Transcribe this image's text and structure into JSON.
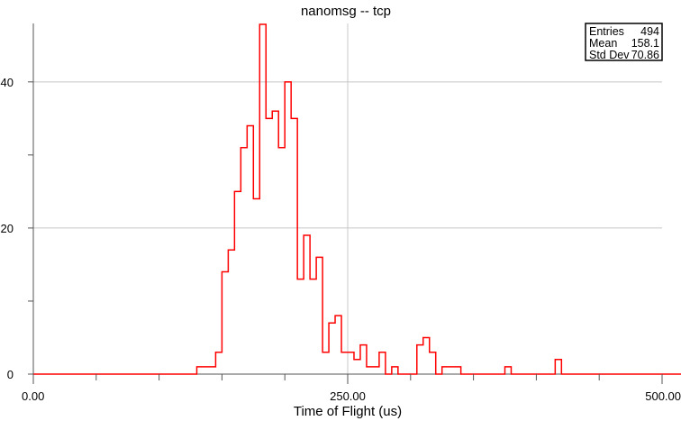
{
  "chart_data": {
    "type": "bar",
    "title": "nanomsg -- tcp",
    "xlabel": "Time of Flight (us)",
    "ylabel": "",
    "xlim": [
      0,
      500
    ],
    "ylim": [
      0,
      48
    ],
    "grid": true,
    "x_ticks": [
      {
        "value": 0,
        "label": "0.00"
      },
      {
        "value": 250,
        "label": "250.00"
      },
      {
        "value": 500,
        "label": "500.00"
      }
    ],
    "y_ticks": [
      {
        "value": 0,
        "label": "0"
      },
      {
        "value": 20,
        "label": "20"
      },
      {
        "value": 40,
        "label": "40"
      }
    ],
    "bin_width": 5,
    "bin_start": 0,
    "values": [
      0,
      0,
      0,
      0,
      0,
      0,
      0,
      0,
      0,
      0,
      0,
      0,
      0,
      0,
      0,
      0,
      0,
      0,
      0,
      0,
      0,
      0,
      0,
      0,
      0,
      0,
      1,
      1,
      1,
      3,
      14,
      17,
      25,
      31,
      34,
      24,
      48,
      35,
      36,
      31,
      40,
      35,
      13,
      19,
      13,
      16,
      3,
      7,
      8,
      3,
      3,
      2,
      4,
      1,
      1,
      3,
      0,
      1,
      0,
      0,
      0,
      4,
      5,
      3,
      0,
      1,
      1,
      1,
      0,
      0,
      0,
      0,
      0,
      0,
      0,
      1,
      0,
      0,
      0,
      0,
      0,
      0,
      0,
      2,
      0,
      0,
      0,
      0,
      0,
      0,
      0,
      0,
      0,
      0,
      0,
      0,
      0,
      0,
      0,
      0,
      0,
      0,
      0,
      0,
      0,
      0,
      0,
      0,
      0,
      0,
      0,
      0,
      0,
      0,
      0,
      0,
      0,
      0,
      0,
      0,
      0,
      0,
      0,
      0,
      0,
      0,
      0,
      0,
      0,
      0,
      0,
      0,
      0,
      0,
      0,
      0,
      0,
      0,
      0,
      0,
      0,
      0,
      0,
      0,
      0,
      0,
      0,
      0,
      0,
      0,
      0,
      0,
      0,
      0,
      0,
      0,
      0,
      0,
      0,
      0
    ],
    "series_color": "#ff0000",
    "stats": {
      "entries_label": "Entries",
      "entries_value": "494",
      "mean_label": "Mean",
      "mean_value": "158.1",
      "std_label": "Std Dev",
      "std_value": "70.86"
    }
  }
}
